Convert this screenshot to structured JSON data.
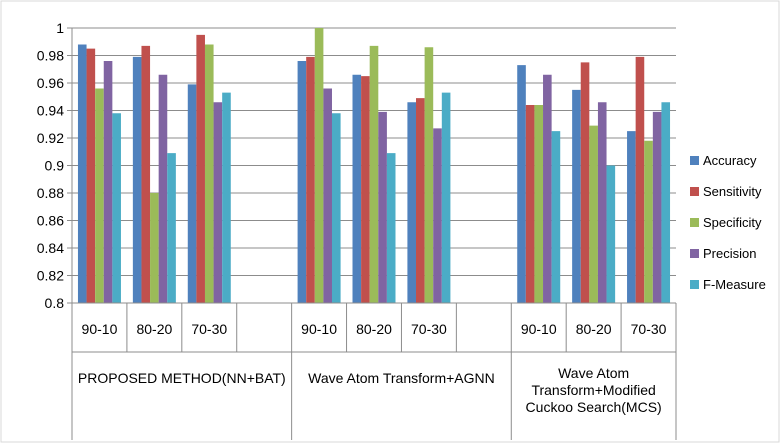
{
  "chart_data": {
    "type": "bar",
    "title": "",
    "xlabel": "",
    "ylabel": "",
    "ylim": [
      0.8,
      1
    ],
    "yticks": [
      0.8,
      0.82,
      0.84,
      0.86,
      0.88,
      0.9,
      0.92,
      0.94,
      0.96,
      0.98,
      1
    ],
    "ytick_labels": [
      "0.8",
      "0.82",
      "0.84",
      "0.86",
      "0.88",
      "0.9",
      "0.92",
      "0.94",
      "0.96",
      "0.98",
      "1"
    ],
    "grid": true,
    "legend_position": "right",
    "categories": [
      "90-10",
      "80-20",
      "70-30",
      "",
      "90-10",
      "80-20",
      "70-30",
      "",
      "90-10",
      "80-20",
      "70-30"
    ],
    "groups": [
      {
        "label_lines": [
          "PROPOSED METHOD(NN+BAT)"
        ],
        "span": 4
      },
      {
        "label_lines": [
          "Wave Atom Transform+AGNN"
        ],
        "span": 4
      },
      {
        "label_lines": [
          "Wave Atom",
          "Transform+Modified",
          "Cuckoo Search(MCS)"
        ],
        "span": 3
      }
    ],
    "series": [
      {
        "name": "Accuracy",
        "color": "#4F81BD",
        "values": [
          0.988,
          0.979,
          0.959,
          null,
          0.976,
          0.966,
          0.946,
          null,
          0.973,
          0.955,
          0.925
        ]
      },
      {
        "name": "Sensitivity",
        "color": "#C0504D",
        "values": [
          0.985,
          0.987,
          0.995,
          null,
          0.979,
          0.965,
          0.949,
          null,
          0.944,
          0.975,
          0.979
        ]
      },
      {
        "name": "Specificity",
        "color": "#9BBB59",
        "values": [
          0.956,
          0.88,
          0.988,
          null,
          1.0,
          0.987,
          0.986,
          null,
          0.944,
          0.929,
          0.918
        ]
      },
      {
        "name": "Precision",
        "color": "#8064A2",
        "values": [
          0.976,
          0.966,
          0.946,
          null,
          0.956,
          0.939,
          0.927,
          null,
          0.966,
          0.946,
          0.939
        ]
      },
      {
        "name": "F-Measure",
        "color": "#4BACC6",
        "values": [
          0.938,
          0.909,
          0.953,
          null,
          0.938,
          0.909,
          0.953,
          null,
          0.925,
          0.9,
          0.946
        ]
      }
    ]
  }
}
